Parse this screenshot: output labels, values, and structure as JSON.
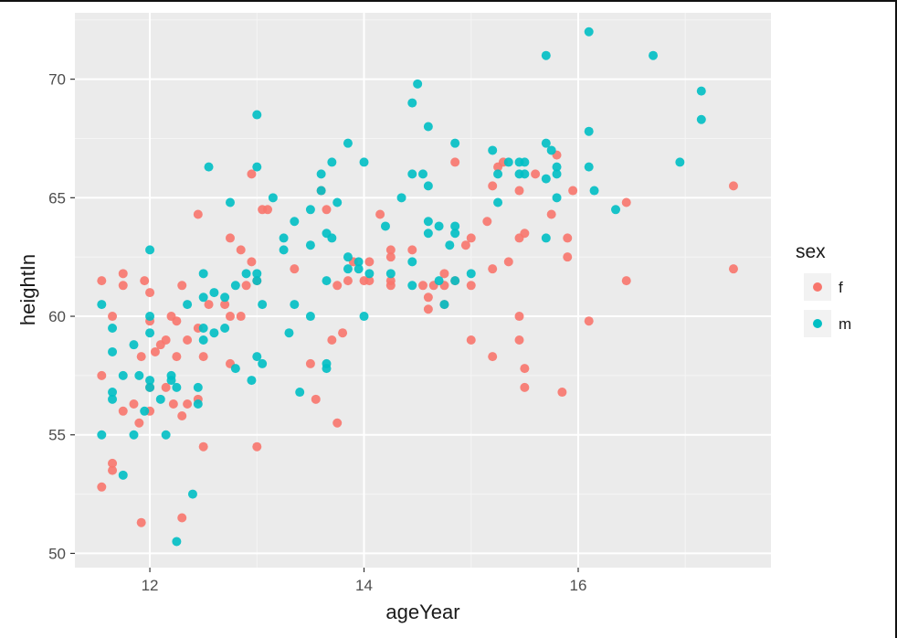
{
  "chart_data": {
    "type": "scatter",
    "title": "",
    "xlabel": "ageYear",
    "ylabel": "heightIn",
    "xlim": [
      11.3,
      17.8
    ],
    "ylim": [
      49.4,
      72.8
    ],
    "xticks": [
      12,
      14,
      16
    ],
    "yticks": [
      50,
      55,
      60,
      65,
      70
    ],
    "grid": true,
    "legend": {
      "title": "sex",
      "position": "right"
    },
    "series": [
      {
        "name": "f",
        "color": "#F8766D",
        "points": [
          [
            11.55,
            61.5
          ],
          [
            11.55,
            57.5
          ],
          [
            11.55,
            52.8
          ],
          [
            11.65,
            60.0
          ],
          [
            11.65,
            53.8
          ],
          [
            11.65,
            53.5
          ],
          [
            11.75,
            61.8
          ],
          [
            11.75,
            61.3
          ],
          [
            11.75,
            56.0
          ],
          [
            11.85,
            56.3
          ],
          [
            11.9,
            55.5
          ],
          [
            11.92,
            51.3
          ],
          [
            11.92,
            58.3
          ],
          [
            11.95,
            61.5
          ],
          [
            12.0,
            61.0
          ],
          [
            12.0,
            59.8
          ],
          [
            12.0,
            57.0
          ],
          [
            12.0,
            56.0
          ],
          [
            12.05,
            58.5
          ],
          [
            12.1,
            58.8
          ],
          [
            12.15,
            59.0
          ],
          [
            12.15,
            57.0
          ],
          [
            12.2,
            60.0
          ],
          [
            12.22,
            56.3
          ],
          [
            12.25,
            59.8
          ],
          [
            12.25,
            58.3
          ],
          [
            12.3,
            61.3
          ],
          [
            12.3,
            55.8
          ],
          [
            12.3,
            51.5
          ],
          [
            12.35,
            56.3
          ],
          [
            12.35,
            59.0
          ],
          [
            12.45,
            64.3
          ],
          [
            12.45,
            59.5
          ],
          [
            12.45,
            56.5
          ],
          [
            12.5,
            58.3
          ],
          [
            12.5,
            54.5
          ],
          [
            12.55,
            60.5
          ],
          [
            12.7,
            60.5
          ],
          [
            12.75,
            63.3
          ],
          [
            12.75,
            60.0
          ],
          [
            12.75,
            58.0
          ],
          [
            12.85,
            62.8
          ],
          [
            12.85,
            60.0
          ],
          [
            12.9,
            61.3
          ],
          [
            12.95,
            62.3
          ],
          [
            12.95,
            66.0
          ],
          [
            13.0,
            61.5
          ],
          [
            13.0,
            54.5
          ],
          [
            13.05,
            64.5
          ],
          [
            13.1,
            64.5
          ],
          [
            13.35,
            62.0
          ],
          [
            13.5,
            58.0
          ],
          [
            13.55,
            56.5
          ],
          [
            13.6,
            65.3
          ],
          [
            13.65,
            64.5
          ],
          [
            13.7,
            59.0
          ],
          [
            13.75,
            61.3
          ],
          [
            13.75,
            55.5
          ],
          [
            13.8,
            59.3
          ],
          [
            13.85,
            61.5
          ],
          [
            13.9,
            62.3
          ],
          [
            14.0,
            61.5
          ],
          [
            14.05,
            62.3
          ],
          [
            14.05,
            61.5
          ],
          [
            14.15,
            64.3
          ],
          [
            14.25,
            62.8
          ],
          [
            14.25,
            62.5
          ],
          [
            14.25,
            61.5
          ],
          [
            14.25,
            61.3
          ],
          [
            14.45,
            62.8
          ],
          [
            14.55,
            61.3
          ],
          [
            14.6,
            60.8
          ],
          [
            14.6,
            60.3
          ],
          [
            14.65,
            61.3
          ],
          [
            14.75,
            61.3
          ],
          [
            14.75,
            61.8
          ],
          [
            14.75,
            60.5
          ],
          [
            14.85,
            61.5
          ],
          [
            14.85,
            66.5
          ],
          [
            14.95,
            63.0
          ],
          [
            15.0,
            63.3
          ],
          [
            15.0,
            61.3
          ],
          [
            15.0,
            59.0
          ],
          [
            15.15,
            64.0
          ],
          [
            15.2,
            65.5
          ],
          [
            15.2,
            62.0
          ],
          [
            15.2,
            58.3
          ],
          [
            15.25,
            66.3
          ],
          [
            15.3,
            66.5
          ],
          [
            15.35,
            62.3
          ],
          [
            15.45,
            65.3
          ],
          [
            15.45,
            63.3
          ],
          [
            15.45,
            60.0
          ],
          [
            15.45,
            59.0
          ],
          [
            15.5,
            63.5
          ],
          [
            15.5,
            57.8
          ],
          [
            15.5,
            57.0
          ],
          [
            15.6,
            66.0
          ],
          [
            15.75,
            64.3
          ],
          [
            15.8,
            66.8
          ],
          [
            15.85,
            56.8
          ],
          [
            15.9,
            63.3
          ],
          [
            15.9,
            62.5
          ],
          [
            15.95,
            65.3
          ],
          [
            16.1,
            59.8
          ],
          [
            16.45,
            64.8
          ],
          [
            16.45,
            61.5
          ],
          [
            17.45,
            65.5
          ],
          [
            17.45,
            62.0
          ]
        ]
      },
      {
        "name": "m",
        "color": "#00BFC4",
        "points": [
          [
            11.55,
            60.5
          ],
          [
            11.55,
            55.0
          ],
          [
            11.65,
            58.5
          ],
          [
            11.65,
            56.8
          ],
          [
            11.65,
            56.5
          ],
          [
            11.65,
            59.5
          ],
          [
            11.75,
            57.5
          ],
          [
            11.75,
            53.3
          ],
          [
            11.85,
            58.8
          ],
          [
            11.85,
            55.0
          ],
          [
            11.9,
            57.5
          ],
          [
            11.95,
            56.0
          ],
          [
            12.0,
            62.8
          ],
          [
            12.0,
            60.0
          ],
          [
            12.0,
            59.3
          ],
          [
            12.0,
            57.3
          ],
          [
            12.0,
            57.0
          ],
          [
            12.1,
            56.5
          ],
          [
            12.15,
            55.0
          ],
          [
            12.2,
            57.5
          ],
          [
            12.2,
            57.3
          ],
          [
            12.25,
            57.0
          ],
          [
            12.25,
            50.5
          ],
          [
            12.35,
            60.5
          ],
          [
            12.4,
            52.5
          ],
          [
            12.45,
            57.0
          ],
          [
            12.45,
            56.3
          ],
          [
            12.5,
            61.8
          ],
          [
            12.5,
            60.8
          ],
          [
            12.5,
            59.5
          ],
          [
            12.5,
            59.0
          ],
          [
            12.55,
            66.3
          ],
          [
            12.6,
            61.0
          ],
          [
            12.6,
            59.3
          ],
          [
            12.7,
            60.8
          ],
          [
            12.7,
            59.5
          ],
          [
            12.75,
            64.8
          ],
          [
            12.8,
            61.3
          ],
          [
            12.8,
            57.8
          ],
          [
            12.9,
            61.8
          ],
          [
            12.95,
            57.3
          ],
          [
            13.0,
            68.5
          ],
          [
            13.0,
            66.3
          ],
          [
            13.0,
            61.8
          ],
          [
            13.0,
            61.5
          ],
          [
            13.0,
            58.3
          ],
          [
            13.05,
            60.5
          ],
          [
            13.05,
            58.0
          ],
          [
            13.15,
            65.0
          ],
          [
            13.25,
            63.3
          ],
          [
            13.25,
            62.8
          ],
          [
            13.3,
            59.3
          ],
          [
            13.35,
            64.0
          ],
          [
            13.35,
            60.5
          ],
          [
            13.4,
            56.8
          ],
          [
            13.5,
            64.5
          ],
          [
            13.5,
            63.0
          ],
          [
            13.5,
            60.0
          ],
          [
            13.6,
            66.0
          ],
          [
            13.6,
            65.3
          ],
          [
            13.65,
            63.5
          ],
          [
            13.65,
            61.5
          ],
          [
            13.65,
            58.0
          ],
          [
            13.65,
            57.8
          ],
          [
            13.7,
            66.5
          ],
          [
            13.7,
            63.3
          ],
          [
            13.75,
            64.8
          ],
          [
            13.85,
            67.3
          ],
          [
            13.85,
            62.5
          ],
          [
            13.85,
            62.0
          ],
          [
            13.95,
            62.3
          ],
          [
            13.95,
            62.0
          ],
          [
            14.0,
            66.5
          ],
          [
            14.0,
            60.0
          ],
          [
            14.05,
            61.8
          ],
          [
            14.2,
            63.8
          ],
          [
            14.25,
            61.8
          ],
          [
            14.35,
            65.0
          ],
          [
            14.45,
            69.0
          ],
          [
            14.45,
            66.0
          ],
          [
            14.45,
            62.3
          ],
          [
            14.45,
            61.3
          ],
          [
            14.5,
            69.8
          ],
          [
            14.55,
            66.0
          ],
          [
            14.6,
            68.0
          ],
          [
            14.6,
            65.5
          ],
          [
            14.6,
            64.0
          ],
          [
            14.6,
            63.5
          ],
          [
            14.7,
            63.8
          ],
          [
            14.7,
            61.5
          ],
          [
            14.75,
            60.5
          ],
          [
            14.8,
            63.0
          ],
          [
            14.85,
            67.3
          ],
          [
            14.85,
            63.8
          ],
          [
            14.85,
            63.5
          ],
          [
            14.85,
            61.5
          ],
          [
            15.0,
            61.8
          ],
          [
            15.2,
            67.0
          ],
          [
            15.25,
            66.0
          ],
          [
            15.25,
            64.8
          ],
          [
            15.35,
            66.5
          ],
          [
            15.45,
            66.5
          ],
          [
            15.45,
            66.0
          ],
          [
            15.5,
            66.5
          ],
          [
            15.5,
            66.0
          ],
          [
            15.7,
            71.0
          ],
          [
            15.7,
            67.3
          ],
          [
            15.7,
            65.8
          ],
          [
            15.7,
            63.3
          ],
          [
            15.75,
            67.0
          ],
          [
            15.8,
            66.0
          ],
          [
            15.8,
            65.0
          ],
          [
            15.8,
            66.3
          ],
          [
            16.1,
            72.0
          ],
          [
            16.1,
            67.8
          ],
          [
            16.1,
            66.3
          ],
          [
            16.15,
            65.3
          ],
          [
            16.35,
            64.5
          ],
          [
            16.7,
            71.0
          ],
          [
            16.95,
            66.5
          ],
          [
            17.15,
            69.5
          ],
          [
            17.15,
            68.3
          ]
        ]
      }
    ]
  }
}
